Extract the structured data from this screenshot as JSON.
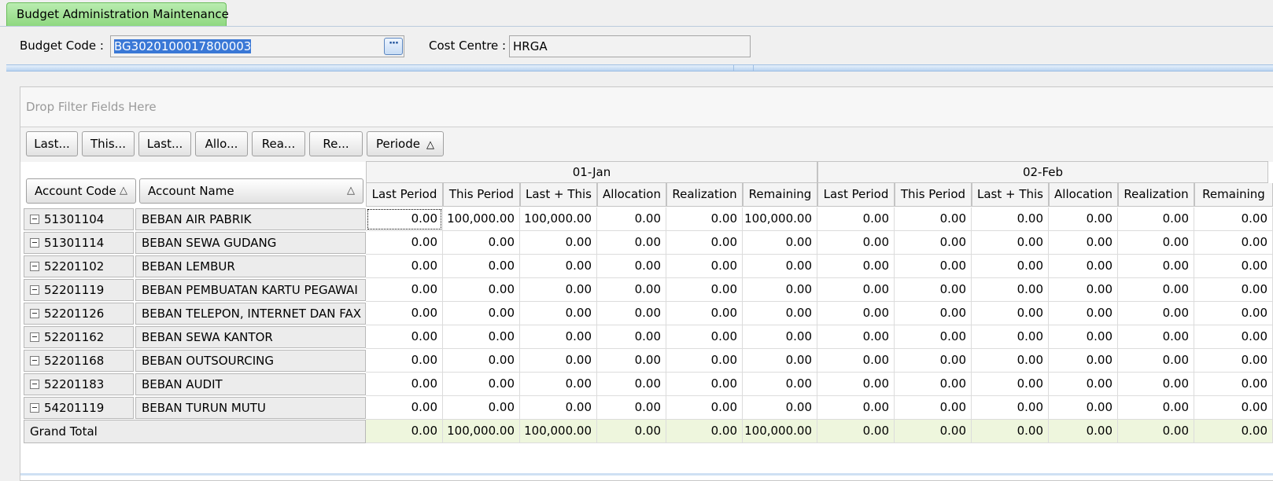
{
  "tab": {
    "title": "Budget Administration Maintenance"
  },
  "header": {
    "budget_code_label": "Budget Code  :",
    "budget_code_value": "BG3020100017800003",
    "cost_centre_label": "Cost Centre :",
    "cost_centre_value": "HRGA",
    "ellipsis": "···"
  },
  "pivot": {
    "filter_placeholder": "Drop Filter Fields Here",
    "data_buttons": [
      "Last...",
      "This...",
      "Last...",
      "Allo...",
      "Rea...",
      "Re..."
    ],
    "column_field": "Periode",
    "row_fields": [
      "Account Code",
      "Account Name"
    ],
    "sort_glyph": "△",
    "column_groups": [
      "01-Jan",
      "02-Feb"
    ],
    "measures": [
      "Last Period",
      "This Period",
      "Last + This",
      "Allocation",
      "Realization",
      "Remaining"
    ],
    "rows": [
      {
        "code": "51301104",
        "name": "BEBAN AIR PABRIK",
        "values": [
          "0.00",
          "100,000.00",
          "100,000.00",
          "0.00",
          "0.00",
          "100,000.00",
          "0.00",
          "0.00",
          "0.00",
          "0.00",
          "0.00",
          "0.00"
        ]
      },
      {
        "code": "51301114",
        "name": "BEBAN SEWA GUDANG",
        "values": [
          "0.00",
          "0.00",
          "0.00",
          "0.00",
          "0.00",
          "0.00",
          "0.00",
          "0.00",
          "0.00",
          "0.00",
          "0.00",
          "0.00"
        ]
      },
      {
        "code": "52201102",
        "name": "BEBAN LEMBUR",
        "values": [
          "0.00",
          "0.00",
          "0.00",
          "0.00",
          "0.00",
          "0.00",
          "0.00",
          "0.00",
          "0.00",
          "0.00",
          "0.00",
          "0.00"
        ]
      },
      {
        "code": "52201119",
        "name": "BEBAN PEMBUATAN KARTU PEGAWAI",
        "values": [
          "0.00",
          "0.00",
          "0.00",
          "0.00",
          "0.00",
          "0.00",
          "0.00",
          "0.00",
          "0.00",
          "0.00",
          "0.00",
          "0.00"
        ]
      },
      {
        "code": "52201126",
        "name": "BEBAN TELEPON, INTERNET DAN FAX",
        "values": [
          "0.00",
          "0.00",
          "0.00",
          "0.00",
          "0.00",
          "0.00",
          "0.00",
          "0.00",
          "0.00",
          "0.00",
          "0.00",
          "0.00"
        ]
      },
      {
        "code": "52201162",
        "name": "BEBAN SEWA KANTOR",
        "values": [
          "0.00",
          "0.00",
          "0.00",
          "0.00",
          "0.00",
          "0.00",
          "0.00",
          "0.00",
          "0.00",
          "0.00",
          "0.00",
          "0.00"
        ]
      },
      {
        "code": "52201168",
        "name": "BEBAN OUTSOURCING",
        "values": [
          "0.00",
          "0.00",
          "0.00",
          "0.00",
          "0.00",
          "0.00",
          "0.00",
          "0.00",
          "0.00",
          "0.00",
          "0.00",
          "0.00"
        ]
      },
      {
        "code": "52201183",
        "name": "BEBAN AUDIT",
        "values": [
          "0.00",
          "0.00",
          "0.00",
          "0.00",
          "0.00",
          "0.00",
          "0.00",
          "0.00",
          "0.00",
          "0.00",
          "0.00",
          "0.00"
        ]
      },
      {
        "code": "54201119",
        "name": "BEBAN TURUN MUTU",
        "values": [
          "0.00",
          "0.00",
          "0.00",
          "0.00",
          "0.00",
          "0.00",
          "0.00",
          "0.00",
          "0.00",
          "0.00",
          "0.00",
          "0.00"
        ]
      }
    ],
    "grand_total": {
      "label": "Grand Total",
      "values": [
        "0.00",
        "100,000.00",
        "100,000.00",
        "0.00",
        "0.00",
        "100,000.00",
        "0.00",
        "0.00",
        "0.00",
        "0.00",
        "0.00",
        "0.00"
      ]
    }
  },
  "colors": {
    "tab_active": "#9be08d",
    "selection": "#3a78d6",
    "grand_total_bg": "#eef6dd"
  }
}
